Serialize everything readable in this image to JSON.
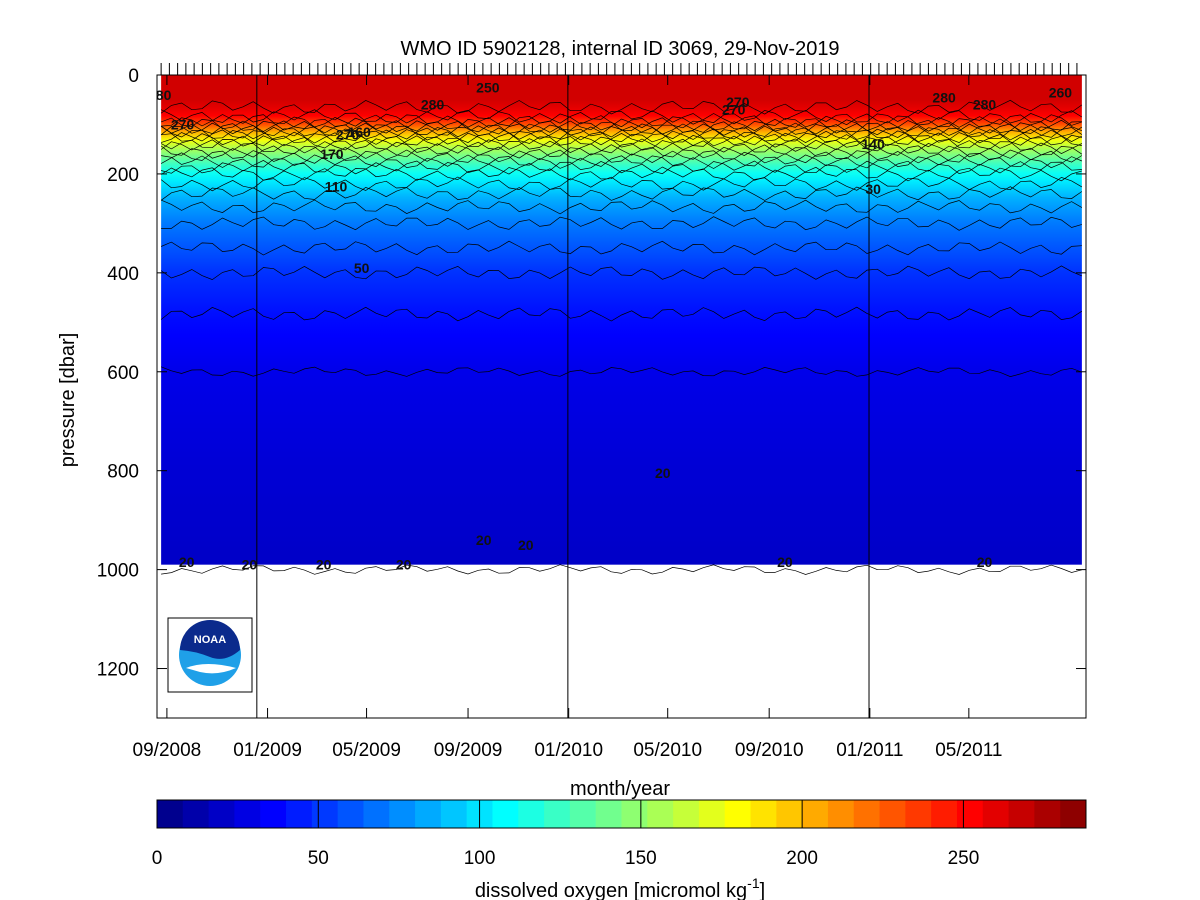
{
  "chart_data": {
    "type": "heatmap",
    "title": "WMO ID 5902128, internal ID 3069, 29-Nov-2019",
    "xlabel": "month/year",
    "ylabel": "pressure [dbar]",
    "x_ticks": [
      "09/2008",
      "01/2009",
      "05/2009",
      "09/2009",
      "01/2010",
      "05/2010",
      "09/2010",
      "01/2011",
      "05/2011"
    ],
    "x_range": [
      "2008-08-20",
      "2011-09-20"
    ],
    "y_ticks": [
      0,
      200,
      400,
      600,
      800,
      1000,
      1200
    ],
    "ylim": [
      1300,
      0
    ],
    "y_reversed": true,
    "data_extent": {
      "time_start": "2008-08-25",
      "time_end": "2011-09-15",
      "pressure_max": 990
    },
    "year_divider_dates": [
      "2008-12-19",
      "2009-12-31",
      "2010-12-31"
    ],
    "profile_series": {
      "name": "dissolved oxygen",
      "pressure": [
        0,
        20,
        50,
        80,
        100,
        120,
        140,
        160,
        180,
        200,
        250,
        300,
        350,
        400,
        450,
        500,
        600,
        800,
        1000
      ],
      "values": [
        265,
        265,
        265,
        255,
        230,
        195,
        165,
        145,
        125,
        110,
        85,
        70,
        60,
        50,
        44,
        38,
        30,
        24,
        20
      ]
    },
    "contour_labels": [
      {
        "text": "80",
        "date": "2008-08-28",
        "pressure": 40
      },
      {
        "text": "270",
        "date": "2008-09-20",
        "pressure": 100
      },
      {
        "text": "280",
        "date": "2009-07-20",
        "pressure": 60
      },
      {
        "text": "250",
        "date": "2009-09-25",
        "pressure": 25
      },
      {
        "text": "270",
        "date": "2009-04-08",
        "pressure": 120
      },
      {
        "text": "160",
        "date": "2009-04-22",
        "pressure": 115
      },
      {
        "text": "170",
        "date": "2009-03-20",
        "pressure": 160
      },
      {
        "text": "110",
        "date": "2009-03-25",
        "pressure": 225
      },
      {
        "text": "50",
        "date": "2009-04-25",
        "pressure": 390
      },
      {
        "text": "270",
        "date": "2010-07-25",
        "pressure": 55
      },
      {
        "text": "270",
        "date": "2010-07-20",
        "pressure": 70
      },
      {
        "text": "280",
        "date": "2011-04-01",
        "pressure": 45
      },
      {
        "text": "280",
        "date": "2011-05-20",
        "pressure": 60
      },
      {
        "text": "260",
        "date": "2011-08-20",
        "pressure": 35
      },
      {
        "text": "140",
        "date": "2011-01-05",
        "pressure": 140
      },
      {
        "text": "30",
        "date": "2011-01-05",
        "pressure": 230
      },
      {
        "text": "20",
        "date": "2010-04-25",
        "pressure": 805
      },
      {
        "text": "20",
        "date": "2008-09-25",
        "pressure": 985
      },
      {
        "text": "20",
        "date": "2008-12-10",
        "pressure": 990
      },
      {
        "text": "20",
        "date": "2009-03-10",
        "pressure": 990
      },
      {
        "text": "20",
        "date": "2009-06-15",
        "pressure": 990
      },
      {
        "text": "20",
        "date": "2009-09-20",
        "pressure": 940
      },
      {
        "text": "20",
        "date": "2009-11-10",
        "pressure": 950
      },
      {
        "text": "20",
        "date": "2010-09-20",
        "pressure": 985
      },
      {
        "text": "20",
        "date": "2011-05-20",
        "pressure": 985
      }
    ],
    "colorbar": {
      "label_main": "dissolved oxygen [micromol kg",
      "label_sup": "-1",
      "label_close": "]",
      "range": [
        0,
        288
      ],
      "ticks": [
        0,
        50,
        100,
        150,
        200,
        250
      ],
      "levels": 36,
      "colormap": "jet"
    },
    "grid": false,
    "legend": "none"
  },
  "logo": {
    "text": "NOAA"
  },
  "colors": {
    "deep": "#0000c8",
    "surface": "#e00000",
    "contour": "#000000"
  }
}
